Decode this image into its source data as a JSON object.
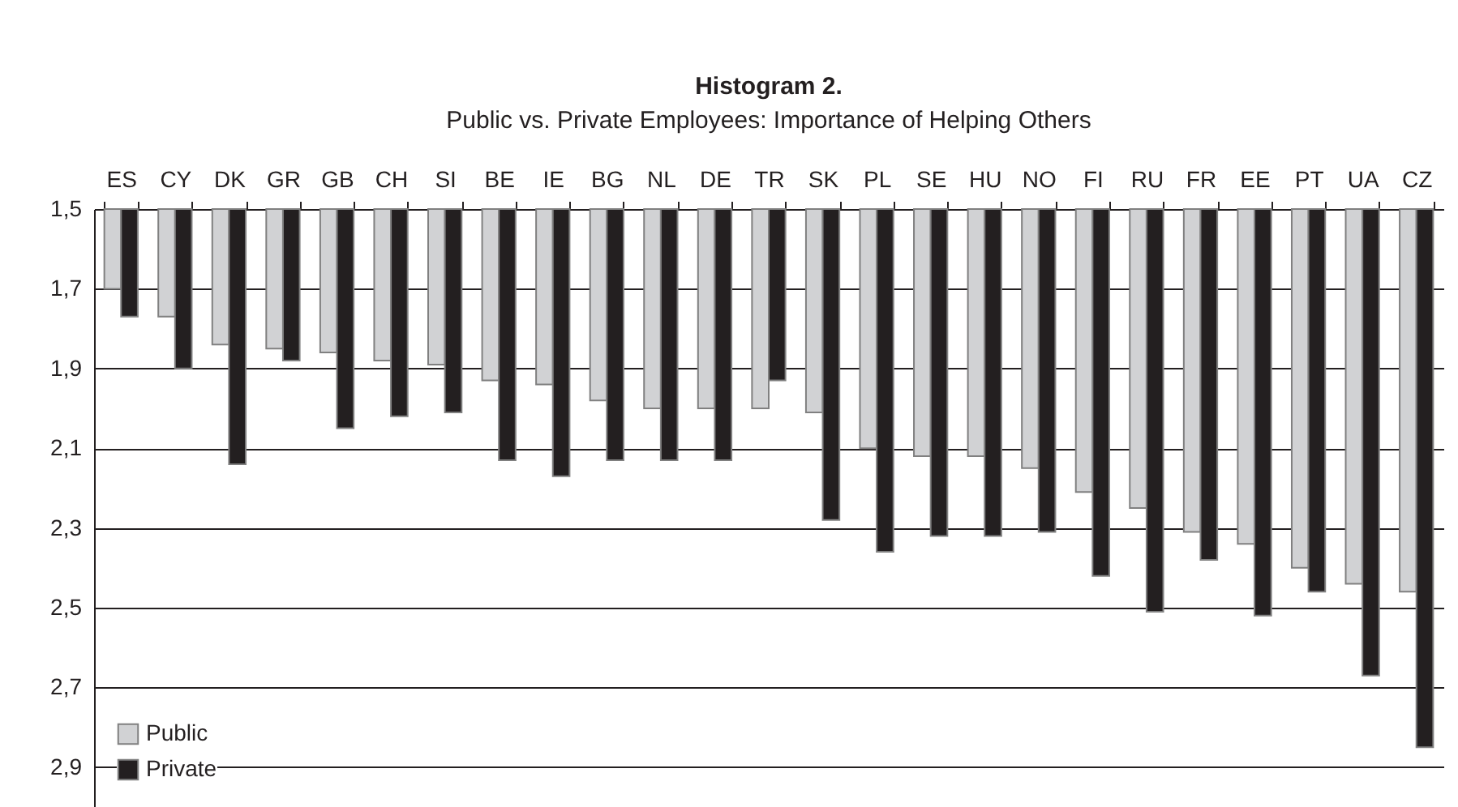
{
  "chart_data": {
    "type": "bar",
    "title": "Histogram 2.",
    "subtitle": "Public vs. Private Employees: Importance of Helping Others",
    "categories": [
      "ES",
      "CY",
      "DK",
      "GR",
      "GB",
      "CH",
      "SI",
      "BE",
      "IE",
      "BG",
      "NL",
      "DE",
      "TR",
      "SK",
      "PL",
      "SE",
      "HU",
      "NO",
      "FI",
      "RU",
      "FR",
      "EE",
      "PT",
      "UA",
      "CZ"
    ],
    "series": [
      {
        "name": "Public",
        "color": "#d1d2d4",
        "values": [
          1.7,
          1.77,
          1.84,
          1.85,
          1.86,
          1.88,
          1.89,
          1.93,
          1.94,
          1.98,
          2.0,
          2.0,
          2.0,
          2.01,
          2.1,
          2.12,
          2.12,
          2.15,
          2.21,
          2.25,
          2.31,
          2.34,
          2.4,
          2.44,
          2.46
        ]
      },
      {
        "name": "Private",
        "color": "#231f20",
        "values": [
          1.77,
          1.9,
          2.14,
          1.88,
          2.05,
          2.02,
          2.01,
          2.13,
          2.17,
          2.13,
          2.13,
          2.13,
          1.93,
          2.28,
          2.36,
          2.32,
          2.32,
          2.31,
          2.42,
          2.51,
          2.38,
          2.52,
          2.46,
          2.67,
          2.85
        ]
      }
    ],
    "ylim": [
      3.0,
      1.5
    ],
    "yticks": [
      {
        "value": 1.5,
        "label": "1,5"
      },
      {
        "value": 1.7,
        "label": "1,7"
      },
      {
        "value": 1.9,
        "label": "1,9"
      },
      {
        "value": 2.1,
        "label": "2,1"
      },
      {
        "value": 2.3,
        "label": "2,3"
      },
      {
        "value": 2.5,
        "label": "2,5"
      },
      {
        "value": 2.7,
        "label": "2,7"
      },
      {
        "value": 2.9,
        "label": "2,9"
      }
    ],
    "grid": "y",
    "legend": "bottom left"
  }
}
